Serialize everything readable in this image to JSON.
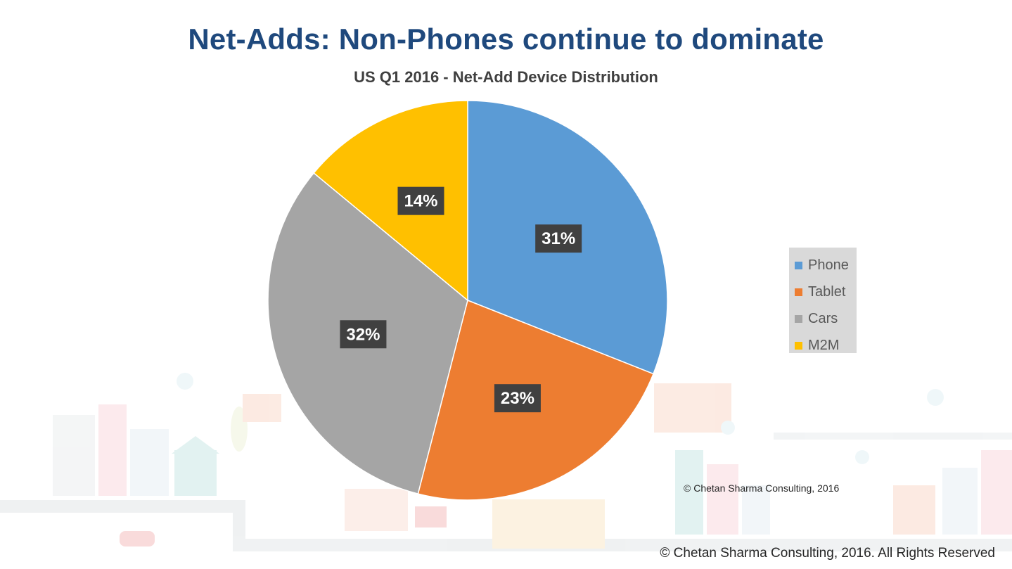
{
  "slide": {
    "title": "Net-Adds: Non-Phones continue to dominate",
    "footer": "© Chetan Sharma Consulting, 2016. All Rights Reserved"
  },
  "chart_data": {
    "type": "pie",
    "title": "US Q1 2016 - Net-Add Device Distribution",
    "categories": [
      "Phone",
      "Tablet",
      "Cars",
      "M2M"
    ],
    "values": [
      31,
      23,
      32,
      14
    ],
    "labels": [
      "31%",
      "23%",
      "32%",
      "14%"
    ],
    "colors": [
      "#5b9bd5",
      "#ed7d31",
      "#a5a5a5",
      "#ffc000"
    ],
    "legend_position": "right",
    "credit": "© Chetan Sharma Consulting, 2016"
  }
}
